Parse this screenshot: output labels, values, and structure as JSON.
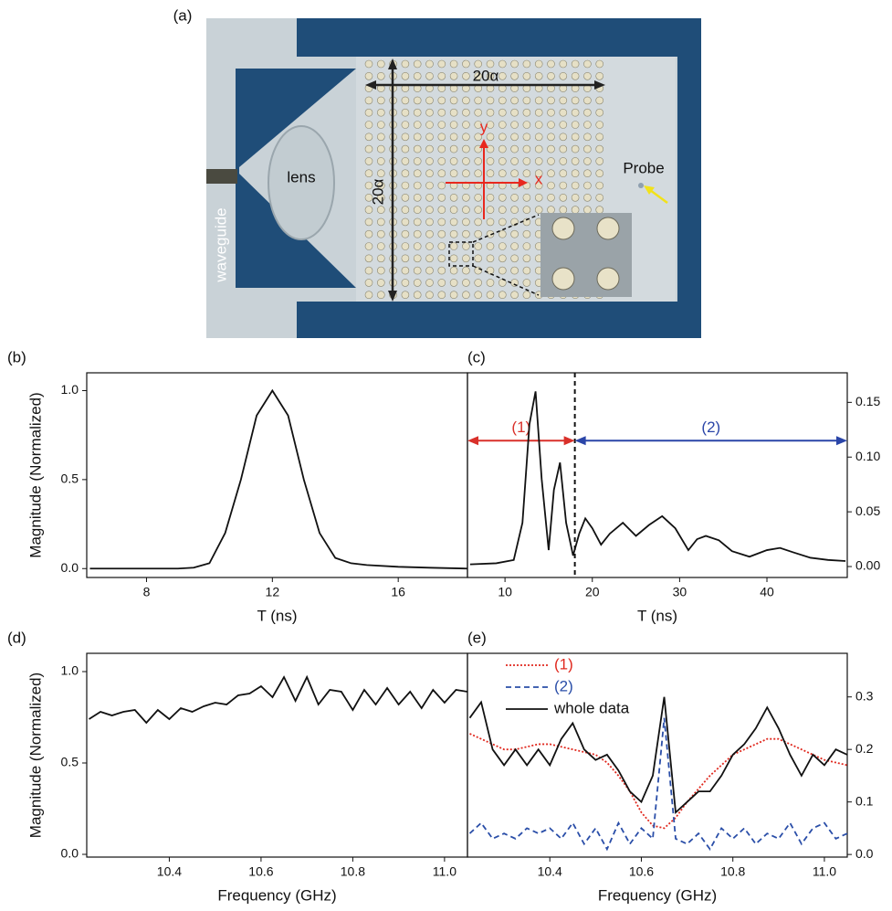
{
  "photo": {
    "label": "(a)",
    "width_label": "20α",
    "height_label": "20α",
    "lens": "lens",
    "y_axis": "y",
    "x_axis": "x",
    "probe": "Probe",
    "waveguide": "waveguide"
  },
  "chart_data": [
    {
      "type": "line",
      "label": "(b)",
      "x_label": "T (ns)",
      "y_label": "Magnitude (Normalized)",
      "x": [
        6.2,
        7,
        8,
        9,
        9.5,
        10,
        10.5,
        11,
        11.5,
        12,
        12.5,
        13,
        13.5,
        14,
        14.5,
        15,
        16,
        17,
        18.2
      ],
      "values": [
        0,
        0,
        0,
        0,
        0.005,
        0.03,
        0.2,
        0.5,
        0.86,
        1.0,
        0.86,
        0.5,
        0.2,
        0.06,
        0.03,
        0.02,
        0.01,
        0.005,
        0
      ],
      "color": "#111111",
      "xlim": [
        6.1,
        18.2
      ],
      "xticks": [
        8,
        12,
        16
      ],
      "ylim": [
        -0.05,
        1.1
      ],
      "yticks": [
        {
          "value": 0,
          "label": "0.0"
        },
        0.5,
        {
          "value": 1,
          "label": "1.0"
        }
      ]
    },
    {
      "type": "line",
      "label": "(c)",
      "x_label": "T (ns)",
      "x": [
        6,
        9,
        11,
        12,
        12.8,
        13.5,
        14.2,
        15,
        15.6,
        16.3,
        17,
        17.8,
        18.5,
        19.2,
        20,
        21,
        22,
        23.5,
        25,
        26.5,
        28,
        29.5,
        31,
        32,
        33,
        34.5,
        36,
        38,
        40,
        41.5,
        43,
        45,
        47,
        49
      ],
      "values": [
        0.002,
        0.003,
        0.006,
        0.04,
        0.13,
        0.16,
        0.08,
        0.015,
        0.07,
        0.095,
        0.04,
        0.01,
        0.03,
        0.044,
        0.035,
        0.02,
        0.03,
        0.04,
        0.028,
        0.038,
        0.046,
        0.035,
        0.015,
        0.025,
        0.028,
        0.024,
        0.014,
        0.009,
        0.015,
        0.017,
        0.013,
        0.008,
        0.006,
        0.005
      ],
      "color": "#111111",
      "axis": "y2",
      "xlim": [
        5.7,
        49.2
      ],
      "xticks": [
        10,
        20,
        30,
        40
      ],
      "y2lim": [
        -0.01,
        0.177
      ],
      "y2ticks": [
        {
          "value": 0,
          "label": "0.00"
        },
        {
          "value": 0.05,
          "label": "0.05"
        },
        {
          "value": 0.1,
          "label": "0.10"
        },
        {
          "value": 0.15,
          "label": "0.15"
        }
      ],
      "vline": 18,
      "arrows": [
        {
          "label": "(1)",
          "color": "#d9302a",
          "from": 5.7,
          "to": 18,
          "y": 0.115
        },
        {
          "label": "(2)",
          "color": "#2a45a8",
          "from": 18,
          "to": 49.2,
          "y": 0.115
        }
      ]
    },
    {
      "type": "line",
      "label": "(d)",
      "x_label": "Frequency (GHz)",
      "y_label": "Magnitude (Normalized)",
      "x": [
        10.225,
        10.25,
        10.275,
        10.3,
        10.325,
        10.35,
        10.375,
        10.4,
        10.425,
        10.45,
        10.475,
        10.5,
        10.525,
        10.55,
        10.575,
        10.6,
        10.625,
        10.65,
        10.675,
        10.7,
        10.725,
        10.75,
        10.775,
        10.8,
        10.825,
        10.85,
        10.875,
        10.9,
        10.925,
        10.95,
        10.975,
        11.0,
        11.025,
        11.05
      ],
      "values": [
        0.74,
        0.78,
        0.76,
        0.78,
        0.79,
        0.72,
        0.79,
        0.74,
        0.8,
        0.78,
        0.81,
        0.83,
        0.82,
        0.87,
        0.88,
        0.92,
        0.86,
        0.97,
        0.84,
        0.97,
        0.82,
        0.9,
        0.89,
        0.79,
        0.9,
        0.82,
        0.91,
        0.82,
        0.89,
        0.8,
        0.9,
        0.83,
        0.9,
        0.89
      ],
      "color": "#111111",
      "xlim": [
        10.22,
        11.05
      ],
      "xticks": [
        10.4,
        10.6,
        10.8,
        {
          "value": 11,
          "label": "11.0"
        }
      ],
      "ylim": [
        -0.015,
        1.1
      ],
      "yticks": [
        {
          "value": 0,
          "label": "0.0"
        },
        0.5,
        {
          "value": 1,
          "label": "1.0"
        }
      ]
    },
    {
      "type": "line",
      "label": "(e)",
      "x_label": "Frequency (GHz)",
      "x": [
        10.225,
        10.25,
        10.275,
        10.3,
        10.325,
        10.35,
        10.375,
        10.4,
        10.425,
        10.45,
        10.475,
        10.5,
        10.525,
        10.55,
        10.575,
        10.6,
        10.625,
        10.65,
        10.675,
        10.7,
        10.725,
        10.75,
        10.775,
        10.8,
        10.825,
        10.85,
        10.875,
        10.9,
        10.925,
        10.95,
        10.975,
        11.0,
        11.025,
        11.05
      ],
      "series": [
        {
          "name": "(1)",
          "color": "#e0281e",
          "dash": "dotted",
          "axis": "y2",
          "values": [
            0.23,
            0.22,
            0.21,
            0.2,
            0.2,
            0.205,
            0.21,
            0.21,
            0.205,
            0.2,
            0.195,
            0.19,
            0.175,
            0.15,
            0.12,
            0.08,
            0.055,
            0.05,
            0.07,
            0.1,
            0.125,
            0.15,
            0.17,
            0.19,
            0.2,
            0.21,
            0.22,
            0.22,
            0.21,
            0.2,
            0.19,
            0.18,
            0.175,
            0.17
          ]
        },
        {
          "name": "(2)",
          "color": "#2a4ea8",
          "dash": "dashed",
          "axis": "y2",
          "values": [
            0.04,
            0.06,
            0.03,
            0.04,
            0.03,
            0.05,
            0.04,
            0.05,
            0.03,
            0.06,
            0.02,
            0.05,
            0.01,
            0.06,
            0.02,
            0.05,
            0.03,
            0.26,
            0.03,
            0.02,
            0.04,
            0.01,
            0.05,
            0.03,
            0.05,
            0.02,
            0.04,
            0.03,
            0.06,
            0.02,
            0.05,
            0.06,
            0.03,
            0.04
          ]
        },
        {
          "name": "whole data",
          "color": "#111111",
          "dash": "solid",
          "axis": "y2",
          "values": [
            0.26,
            0.29,
            0.2,
            0.17,
            0.2,
            0.17,
            0.2,
            0.17,
            0.22,
            0.25,
            0.2,
            0.18,
            0.19,
            0.16,
            0.12,
            0.1,
            0.15,
            0.3,
            0.08,
            0.1,
            0.12,
            0.12,
            0.15,
            0.19,
            0.21,
            0.24,
            0.28,
            0.24,
            0.19,
            0.15,
            0.19,
            0.17,
            0.2,
            0.19
          ]
        }
      ],
      "legend": "upper left",
      "xlim": [
        10.22,
        11.05
      ],
      "xticks": [
        10.4,
        10.6,
        10.8,
        {
          "value": 11,
          "label": "11.0"
        }
      ],
      "y2lim": [
        -0.005,
        0.383
      ],
      "y2ticks": [
        {
          "value": 0,
          "label": "0.0"
        },
        0.1,
        0.2,
        0.3
      ]
    }
  ]
}
